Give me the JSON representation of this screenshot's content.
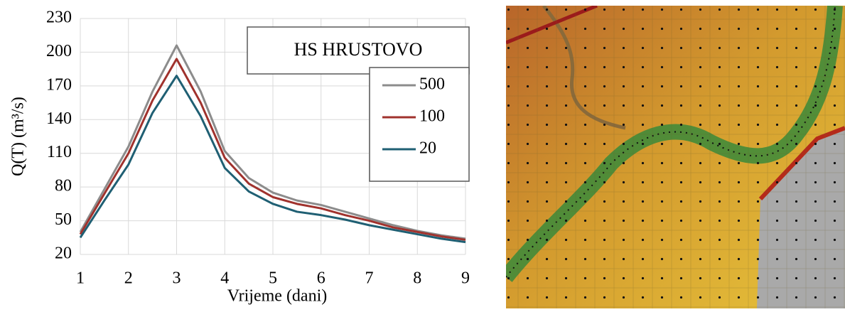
{
  "chart_data": {
    "type": "line",
    "title": "HS HRUSTOVO",
    "xlabel": "Vrijeme (dani)",
    "ylabel": "Q(T) (m³/s)",
    "x": [
      1,
      1.5,
      2,
      2.5,
      3,
      3.5,
      4,
      4.5,
      5,
      5.5,
      6,
      6.5,
      7,
      7.5,
      8,
      8.5,
      9
    ],
    "series": [
      {
        "name": "500",
        "color": "#8c8c8c",
        "values": [
          40,
          78,
          116,
          165,
          206,
          165,
          112,
          88,
          75,
          68,
          64,
          58,
          52,
          46,
          41,
          37,
          34
        ]
      },
      {
        "name": "100",
        "color": "#a0322d",
        "values": [
          38,
          74,
          110,
          157,
          194,
          155,
          106,
          83,
          71,
          65,
          61,
          55,
          50,
          44,
          40,
          36,
          33
        ]
      },
      {
        "name": "20",
        "color": "#1f5f73",
        "values": [
          35,
          68,
          100,
          146,
          179,
          143,
          97,
          76,
          65,
          58,
          55,
          51,
          46,
          42,
          38,
          34,
          31
        ]
      }
    ],
    "xlim": [
      1,
      9
    ],
    "xticks": [
      1,
      2,
      3,
      4,
      5,
      6,
      7,
      8,
      9
    ],
    "ylim": [
      20,
      230
    ],
    "yticks": [
      20,
      50,
      80,
      110,
      140,
      170,
      200,
      230
    ],
    "grid": true
  }
}
